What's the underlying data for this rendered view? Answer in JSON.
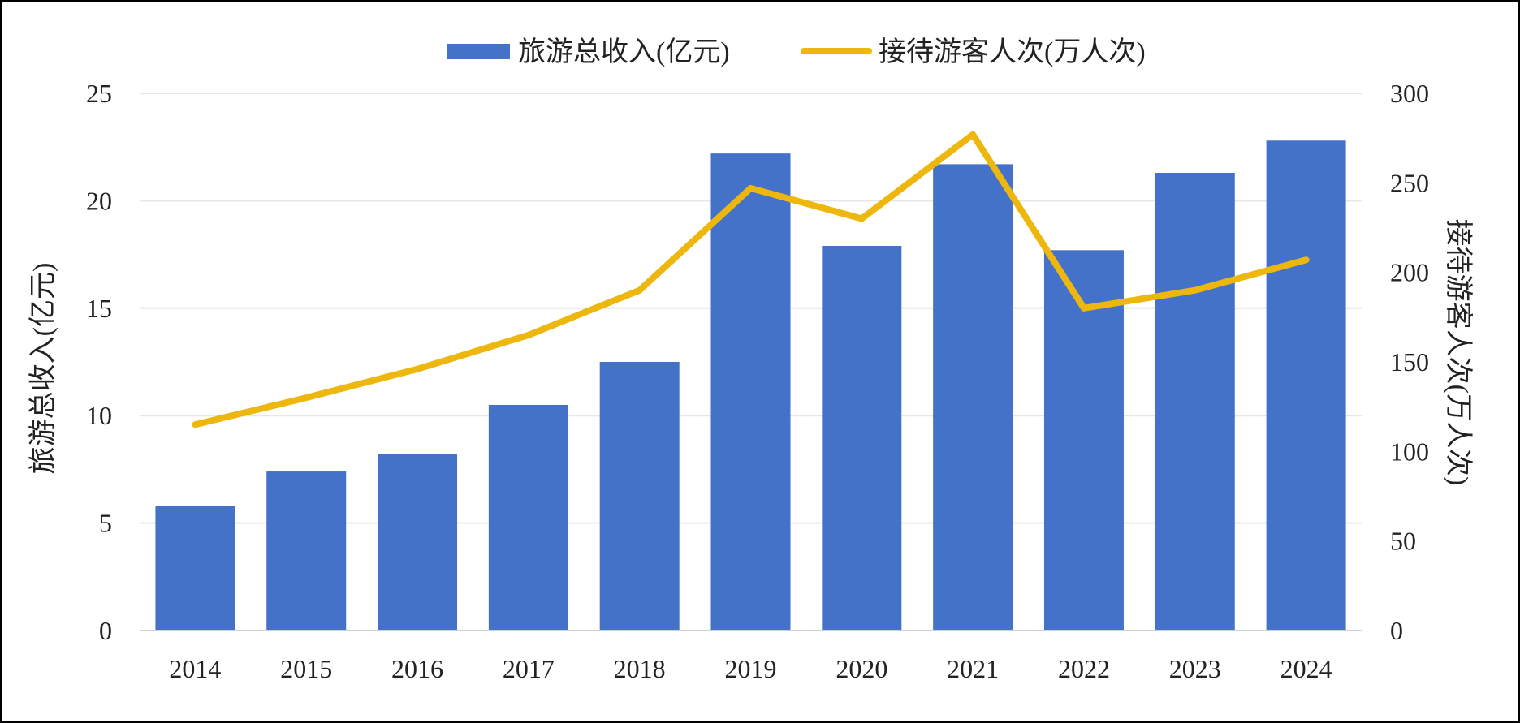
{
  "chart_data": {
    "type": "bar",
    "categories": [
      "2014",
      "2015",
      "2016",
      "2017",
      "2018",
      "2019",
      "2020",
      "2021",
      "2022",
      "2023",
      "2024"
    ],
    "series": [
      {
        "name": "旅游总收入(亿元)",
        "type": "bar",
        "axis": "left",
        "color": "#4472C8",
        "values": [
          5.8,
          7.4,
          8.2,
          10.5,
          12.5,
          22.2,
          17.9,
          21.7,
          17.7,
          21.3,
          22.8
        ]
      },
      {
        "name": "接待游客人次(万人次)",
        "type": "line",
        "axis": "right",
        "color": "#EDB70D",
        "values": [
          115,
          130,
          146,
          165,
          190,
          247,
          230,
          277,
          180,
          190,
          207
        ]
      }
    ],
    "ylabel": "旅游总收入(亿元)",
    "y2label": "接待游客人次(万人次)",
    "ylim": [
      0,
      25
    ],
    "yticks": [
      "0",
      "5",
      "10",
      "15",
      "20",
      "25"
    ],
    "y2lim": [
      0,
      300
    ],
    "y2ticks": [
      "0",
      "50",
      "100",
      "150",
      "200",
      "250",
      "300"
    ],
    "grid": true,
    "legend_position": "top-center"
  }
}
